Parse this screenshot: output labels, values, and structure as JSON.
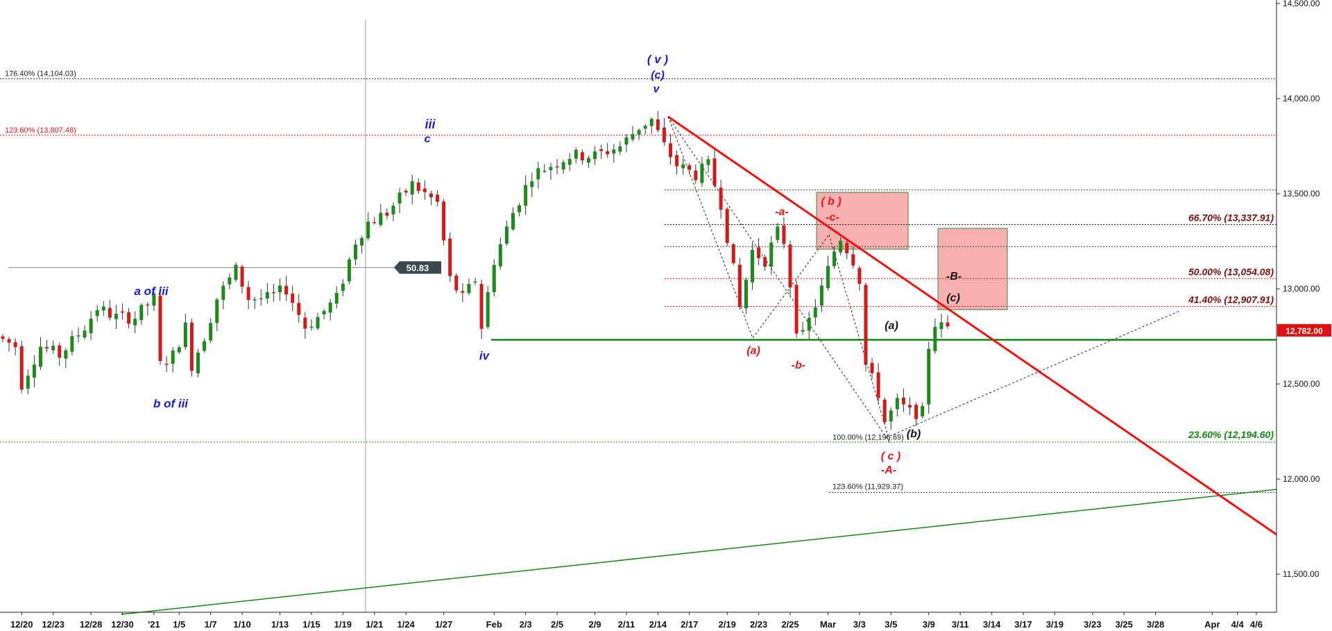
{
  "chart_data": {
    "type": "candlestick",
    "title": "",
    "xlabel": "",
    "ylabel": "",
    "ylim": [
      11300,
      14500
    ],
    "y_ticks": [
      {
        "value": 14500,
        "label": "14,500.00"
      },
      {
        "value": 14000,
        "label": "14,000.00"
      },
      {
        "value": 13500,
        "label": "13,500.00"
      },
      {
        "value": 13000,
        "label": "13,000.00"
      },
      {
        "value": 12500,
        "label": "12,500.00"
      },
      {
        "value": 12000,
        "label": "12,000.00"
      },
      {
        "value": 11500,
        "label": "11,500.00"
      }
    ],
    "x_ticks": [
      {
        "label": "12/20",
        "bar": 3
      },
      {
        "label": "12/23",
        "bar": 8
      },
      {
        "label": "12/28",
        "bar": 14
      },
      {
        "label": "12/30",
        "bar": 19
      },
      {
        "label": "'21",
        "bar": 24
      },
      {
        "label": "1/5",
        "bar": 28
      },
      {
        "label": "1/7",
        "bar": 33
      },
      {
        "label": "1/10",
        "bar": 38
      },
      {
        "label": "1/13",
        "bar": 44
      },
      {
        "label": "1/15",
        "bar": 49
      },
      {
        "label": "1/19",
        "bar": 54
      },
      {
        "label": "1/21",
        "bar": 59
      },
      {
        "label": "1/24",
        "bar": 64
      },
      {
        "label": "1/27",
        "bar": 70
      },
      {
        "label": "Feb",
        "bar": 78
      },
      {
        "label": "2/3",
        "bar": 83
      },
      {
        "label": "2/5",
        "bar": 88
      },
      {
        "label": "2/9",
        "bar": 94
      },
      {
        "label": "2/11",
        "bar": 99
      },
      {
        "label": "2/14",
        "bar": 104
      },
      {
        "label": "2/17",
        "bar": 109
      },
      {
        "label": "2/19",
        "bar": 115
      },
      {
        "label": "2/23",
        "bar": 120
      },
      {
        "label": "2/25",
        "bar": 125
      },
      {
        "label": "Mar",
        "bar": 131
      },
      {
        "label": "3/3",
        "bar": 136
      },
      {
        "label": "3/5",
        "bar": 141
      },
      {
        "label": "3/9",
        "bar": 147
      },
      {
        "label": "3/11",
        "bar": 152
      },
      {
        "label": "3/14",
        "bar": 157
      },
      {
        "label": "3/17",
        "bar": 162
      },
      {
        "label": "3/19",
        "bar": 167
      },
      {
        "label": "3/23",
        "bar": 173
      },
      {
        "label": "3/25",
        "bar": 178
      },
      {
        "label": "3/28",
        "bar": 183
      },
      {
        "label": "Apr",
        "bar": 192
      },
      {
        "label": "4/4",
        "bar": 196
      },
      {
        "label": "4/6",
        "bar": 199
      }
    ],
    "price_anchors": [
      [
        0,
        12750
      ],
      [
        3,
        12700
      ],
      [
        4,
        12500
      ],
      [
        7,
        12700
      ],
      [
        10,
        12650
      ],
      [
        14,
        12800
      ],
      [
        16,
        12900
      ],
      [
        19,
        12850
      ],
      [
        22,
        12850
      ],
      [
        25,
        12950
      ],
      [
        26,
        12600
      ],
      [
        28,
        12650
      ],
      [
        30,
        12800
      ],
      [
        31,
        12600
      ],
      [
        33,
        12750
      ],
      [
        35,
        12950
      ],
      [
        38,
        13100
      ],
      [
        40,
        12950
      ],
      [
        43,
        12950
      ],
      [
        46,
        13000
      ],
      [
        49,
        12800
      ],
      [
        51,
        12850
      ],
      [
        54,
        12950
      ],
      [
        57,
        13250
      ],
      [
        59,
        13350
      ],
      [
        62,
        13400
      ],
      [
        66,
        13550
      ],
      [
        68,
        13500
      ],
      [
        70,
        13450
      ],
      [
        72,
        13050
      ],
      [
        74,
        12950
      ],
      [
        76,
        13050
      ],
      [
        77,
        12800
      ],
      [
        79,
        13150
      ],
      [
        82,
        13400
      ],
      [
        85,
        13600
      ],
      [
        88,
        13650
      ],
      [
        91,
        13700
      ],
      [
        95,
        13700
      ],
      [
        99,
        13750
      ],
      [
        102,
        13850
      ],
      [
        104,
        13890
      ],
      [
        106,
        13750
      ],
      [
        108,
        13650
      ],
      [
        111,
        13600
      ],
      [
        113,
        13650
      ],
      [
        115,
        13450
      ],
      [
        117,
        13100
      ],
      [
        118,
        12900
      ],
      [
        120,
        13200
      ],
      [
        122,
        13150
      ],
      [
        124,
        13300
      ],
      [
        125,
        13250
      ],
      [
        127,
        12800
      ],
      [
        128,
        12750
      ],
      [
        131,
        13000
      ],
      [
        133,
        13200
      ],
      [
        134,
        13270
      ],
      [
        136,
        13150
      ],
      [
        137,
        13050
      ],
      [
        138,
        12600
      ],
      [
        140,
        12450
      ],
      [
        141,
        12300
      ],
      [
        143,
        12400
      ],
      [
        145,
        12350
      ],
      [
        147,
        12350
      ],
      [
        148,
        12700
      ],
      [
        149,
        12820
      ],
      [
        150,
        12800
      ]
    ],
    "horizontal_levels": [
      {
        "name": "176.40% (14,104.03)",
        "value": 14104.03
      },
      {
        "name": "123.60% (13,807.48)",
        "value": 13807.48
      },
      {
        "name": "66.70% (13,337.91)",
        "value": 13337.91
      },
      {
        "name": "50.00% (13,054.08)",
        "value": 13054.08
      },
      {
        "name": "41.40% (12,907.91)",
        "value": 12907.91
      },
      {
        "name": "23.60% (12,194.60)",
        "value": 12194.6
      },
      {
        "name": "100.00% (12,196.69)",
        "value": 12196.69
      },
      {
        "name": "123.60% (11,929.37)",
        "value": 11929.37
      }
    ],
    "last_price": {
      "value": 12782.0,
      "label": "12,782.00"
    },
    "marker": {
      "label": "50.83",
      "value": 13112
    },
    "wave_labels": [
      {
        "text": "( v )",
        "color": "#1a1ad4"
      },
      {
        "text": "(c)",
        "color": "#1a1ad4"
      },
      {
        "text": "v",
        "color": "#1a1ad4"
      },
      {
        "text": "iii",
        "color": "#1a1ad4"
      },
      {
        "text": "c",
        "color": "#1a1ad4"
      },
      {
        "text": "a of iii",
        "color": "#1a1ad4"
      },
      {
        "text": "b of iii",
        "color": "#1a1ad4"
      },
      {
        "text": "iv",
        "color": "#1a1ad4"
      },
      {
        "text": "-a-",
        "color": "#e8141e"
      },
      {
        "text": "( b )",
        "color": "#e8141e"
      },
      {
        "text": "-c-",
        "color": "#e8141e"
      },
      {
        "text": "(a)",
        "color": "#e8141e"
      },
      {
        "text": "-b-",
        "color": "#e8141e"
      },
      {
        "text": "( c )",
        "color": "#e8141e"
      },
      {
        "text": "-A-",
        "color": "#e8141e"
      },
      {
        "text": "(a)",
        "color": "#111111"
      },
      {
        "text": "(b)",
        "color": "#111111"
      },
      {
        "text": "-B-",
        "color": "#111111"
      },
      {
        "text": "(c)",
        "color": "#111111"
      }
    ],
    "colors": {
      "up": "#1c8a1c",
      "down": "#d11a1a",
      "trend_red": "#f01010",
      "support_green": "#118811",
      "fib_red": "#e8141e",
      "fib_dark": "#7a1010",
      "fib_green": "#118811",
      "wave_blue": "#1a1ad4",
      "target_box": "#f7b0b0",
      "price_tag": "#e01010"
    }
  }
}
